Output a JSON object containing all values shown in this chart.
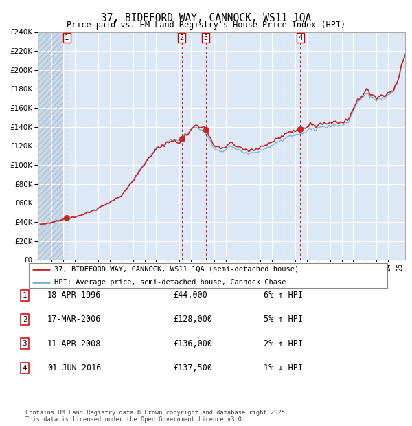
{
  "title": "37, BIDEFORD WAY, CANNOCK, WS11 1QA",
  "subtitle": "Price paid vs. HM Land Registry's House Price Index (HPI)",
  "legend_line1": "37, BIDEFORD WAY, CANNOCK, WS11 1QA (semi-detached house)",
  "legend_line2": "HPI: Average price, semi-detached house, Cannock Chase",
  "footer": "Contains HM Land Registry data © Crown copyright and database right 2025.\nThis data is licensed under the Open Government Licence v3.0.",
  "transactions": [
    {
      "num": 1,
      "date": "18-APR-1996",
      "price": 44000,
      "hpi_pct": "6%",
      "hpi_dir": "↑",
      "year": 1996.29
    },
    {
      "num": 2,
      "date": "17-MAR-2006",
      "price": 128000,
      "hpi_pct": "5%",
      "hpi_dir": "↑",
      "year": 2006.21
    },
    {
      "num": 3,
      "date": "11-APR-2008",
      "price": 136000,
      "hpi_pct": "2%",
      "hpi_dir": "↑",
      "year": 2008.28
    },
    {
      "num": 4,
      "date": "01-JUN-2016",
      "price": 137500,
      "hpi_pct": "1%",
      "hpi_dir": "↓",
      "year": 2016.42
    }
  ],
  "hpi_color": "#7aadd4",
  "price_color": "#cc2222",
  "bg_color": "#dce8f5",
  "grid_color": "#ffffff",
  "vline_color": "#cc0000",
  "ylim": [
    0,
    240000
  ],
  "yticks": [
    0,
    20000,
    40000,
    60000,
    80000,
    100000,
    120000,
    140000,
    160000,
    180000,
    200000,
    220000,
    240000
  ],
  "xlim_start": 1993.8,
  "xlim_end": 2025.5
}
